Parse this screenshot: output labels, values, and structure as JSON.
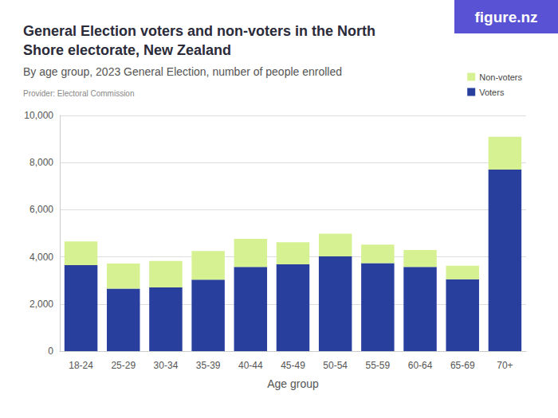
{
  "chart_data": {
    "type": "bar",
    "title": "General Election voters and non-voters in the North Shore electorate, New Zealand",
    "subtitle": "By age group, 2023 General Election, number of people enrolled",
    "provider": "Provider: Electoral Commission",
    "logo": "figure.nz",
    "x_label": "Age group",
    "categories": [
      "18-24",
      "25-29",
      "30-34",
      "35-39",
      "40-44",
      "45-49",
      "50-54",
      "55-59",
      "60-64",
      "65-69",
      "70+"
    ],
    "series": [
      {
        "name": "Voters",
        "color": "#283f9e",
        "values": [
          3650,
          2650,
          2700,
          3030,
          3570,
          3680,
          4020,
          3730,
          3570,
          3050,
          7700
        ]
      },
      {
        "name": "Non-voters",
        "color": "#d6f191",
        "values": [
          1000,
          1070,
          1130,
          1220,
          1190,
          940,
          960,
          790,
          720,
          570,
          1400
        ]
      }
    ],
    "stacked": true,
    "ylim": [
      0,
      10000
    ],
    "yticks": [
      0,
      {
        "value": 2000,
        "label": "2,000"
      },
      {
        "value": 4000,
        "label": "4,000"
      },
      {
        "value": 6000,
        "label": "6,000"
      },
      {
        "value": 8000,
        "label": "8,000"
      },
      {
        "value": 10000,
        "label": "10,000"
      }
    ],
    "grid": true,
    "legend": "top-right"
  }
}
